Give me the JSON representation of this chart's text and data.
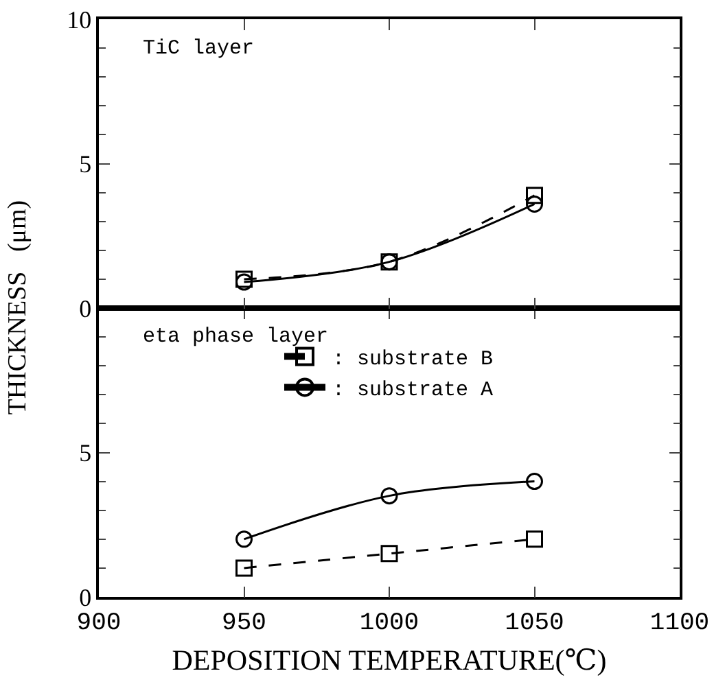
{
  "chart_data": [
    {
      "type": "line",
      "ylabel": "THICKNESS   (μm)",
      "annotations": [
        "TiC layer"
      ],
      "x": [
        950,
        1000,
        1050
      ],
      "xlim": [
        900,
        1100
      ],
      "xticks": [
        900,
        950,
        1000,
        1050,
        1100
      ],
      "ylim": [
        0,
        10
      ],
      "yticks": [
        0,
        5,
        10
      ],
      "tick_labels": "y",
      "grid": false,
      "legend": false,
      "series": [
        {
          "color": "#000000",
          "values": [
            1.0,
            1.6,
            3.9
          ],
          "marker": "square",
          "line_style": "dashed"
        },
        {
          "color": "#000000",
          "values": [
            0.9,
            1.6,
            3.6
          ],
          "marker": "circle",
          "line_style": "solid"
        }
      ]
    },
    {
      "type": "line",
      "xlabel": "DEPOSITION TEMPERATURE(℃)",
      "annotations": [
        "eta phase layer"
      ],
      "x": [
        950,
        1000,
        1050
      ],
      "xlim": [
        900,
        1100
      ],
      "xticks": [
        900,
        950,
        1000,
        1050,
        1100
      ],
      "ylim": [
        0,
        10
      ],
      "yticks": [
        0,
        5,
        {
          "value": 10,
          "label": null
        }
      ],
      "grid": false,
      "legend": "top",
      "series": [
        {
          "name": ": substrate B",
          "color": "#000000",
          "values": [
            1.0,
            1.5,
            2.0
          ],
          "marker": "square",
          "line_style": "dashed"
        },
        {
          "name": ": substrate A",
          "color": "#000000",
          "values": [
            2.0,
            3.5,
            4.0
          ],
          "marker": "circle",
          "line_style": "solid"
        }
      ]
    }
  ]
}
